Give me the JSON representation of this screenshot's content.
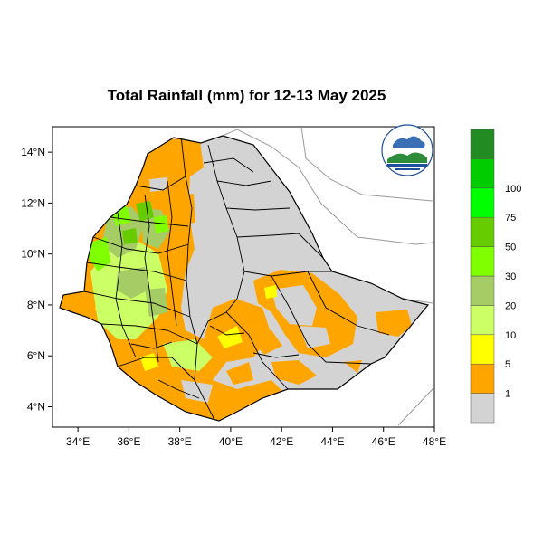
{
  "title": "Total Rainfall (mm) for 12-13 May 2025",
  "map": {
    "lon_range": [
      33,
      48
    ],
    "lat_range": [
      3.2,
      15
    ],
    "lon_ticks": [
      {
        "value": 34,
        "label": "34°E"
      },
      {
        "value": 36,
        "label": "36°E"
      },
      {
        "value": 38,
        "label": "38°E"
      },
      {
        "value": 40,
        "label": "40°E"
      },
      {
        "value": 42,
        "label": "42°E"
      },
      {
        "value": 44,
        "label": "44°E"
      },
      {
        "value": 46,
        "label": "46°E"
      },
      {
        "value": 48,
        "label": "48°E"
      }
    ],
    "lat_ticks": [
      {
        "value": 14,
        "label": "14°N"
      },
      {
        "value": 12,
        "label": "12°N"
      },
      {
        "value": 10,
        "label": "10°N"
      },
      {
        "value": 8,
        "label": "8°N"
      },
      {
        "value": 6,
        "label": "6°N"
      },
      {
        "value": 4,
        "label": "4°N"
      }
    ]
  },
  "colorbar": {
    "bins": [
      {
        "color": "#d3d3d3"
      },
      {
        "color": "#ffa500"
      },
      {
        "color": "#ffff00"
      },
      {
        "color": "#ccff66"
      },
      {
        "color": "#a6cc66"
      },
      {
        "color": "#80ff00"
      },
      {
        "color": "#66cc00"
      },
      {
        "color": "#00ff00"
      },
      {
        "color": "#00cc00"
      },
      {
        "color": "#228b22"
      }
    ],
    "labels": [
      "1",
      "5",
      "10",
      "20",
      "30",
      "50",
      "75",
      "100"
    ]
  },
  "colors": {
    "no_rain": "#d3d3d3",
    "light": "#ffa500",
    "green_light": "#ccff66",
    "green_mid": "#a6cc66",
    "green_bright": "#80ff00",
    "green_dark": "#66cc00"
  },
  "logo": {
    "icon": "agency-logo-icon"
  }
}
